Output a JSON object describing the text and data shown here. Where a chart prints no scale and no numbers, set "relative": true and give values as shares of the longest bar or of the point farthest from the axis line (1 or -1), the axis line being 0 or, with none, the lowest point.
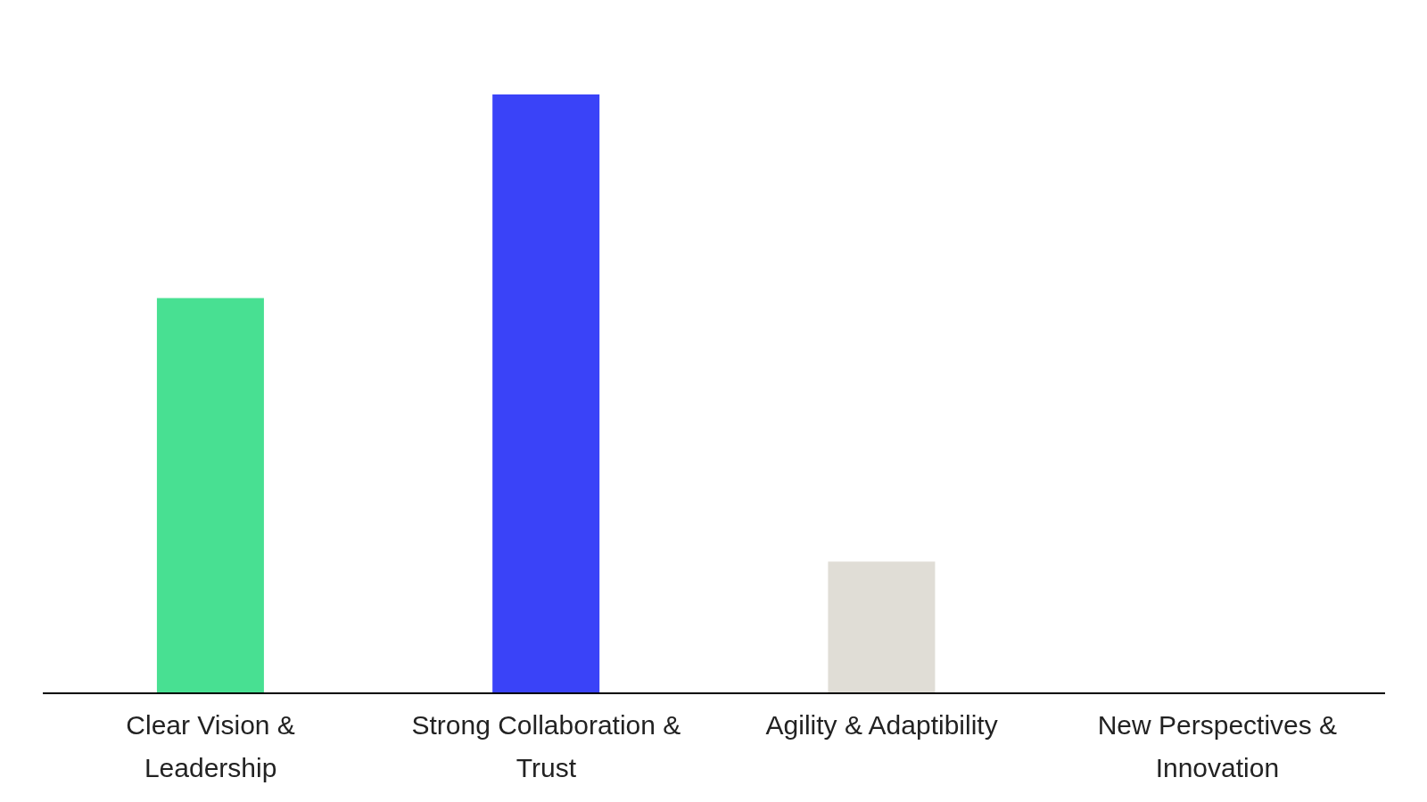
{
  "chart_data": {
    "type": "bar",
    "relative": true,
    "categories": [
      "Clear Vision & Leadership",
      "Strong Collaboration & Trust",
      "Agility & Adaptibility",
      "New Perspectives & Innovation"
    ],
    "values": [
      0.66,
      1,
      0.22,
      0
    ],
    "colors": [
      "#48e092",
      "#3a43f8",
      "#e0ddd6",
      "#e0ddd6"
    ],
    "grid": false,
    "legend": false
  }
}
